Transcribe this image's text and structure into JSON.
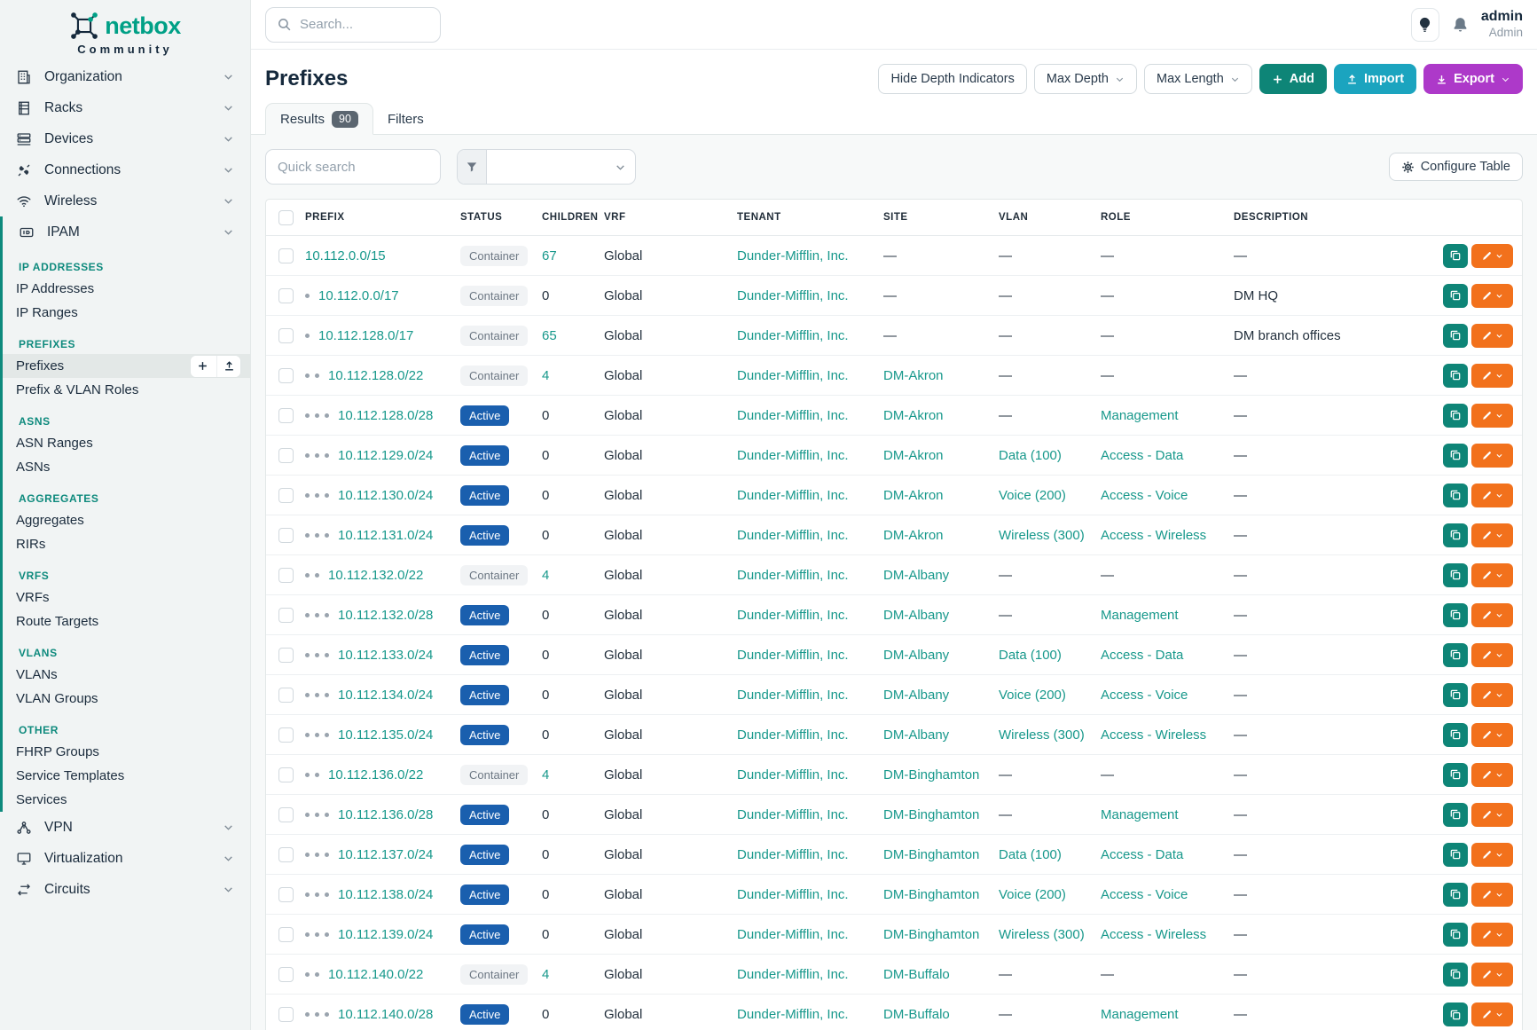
{
  "brand": {
    "name": "netbox",
    "subtitle": "Community"
  },
  "topbar": {
    "search_placeholder": "Search...",
    "user": {
      "name": "admin",
      "role": "Admin"
    }
  },
  "sidebar": {
    "top_items": [
      {
        "label": "Organization",
        "icon": "building"
      },
      {
        "label": "Racks",
        "icon": "rack"
      },
      {
        "label": "Devices",
        "icon": "devices"
      },
      {
        "label": "Connections",
        "icon": "plug"
      },
      {
        "label": "Wireless",
        "icon": "wifi"
      },
      {
        "label": "IPAM",
        "icon": "ipam"
      }
    ],
    "ipam_sections": [
      {
        "header": "IP ADDRESSES",
        "items": [
          {
            "label": "IP Addresses"
          },
          {
            "label": "IP Ranges"
          }
        ]
      },
      {
        "header": "PREFIXES",
        "items": [
          {
            "label": "Prefixes",
            "active": true
          },
          {
            "label": "Prefix & VLAN Roles"
          }
        ]
      },
      {
        "header": "ASNS",
        "items": [
          {
            "label": "ASN Ranges"
          },
          {
            "label": "ASNs"
          }
        ]
      },
      {
        "header": "AGGREGATES",
        "items": [
          {
            "label": "Aggregates"
          },
          {
            "label": "RIRs"
          }
        ]
      },
      {
        "header": "VRFS",
        "items": [
          {
            "label": "VRFs"
          },
          {
            "label": "Route Targets"
          }
        ]
      },
      {
        "header": "VLANS",
        "items": [
          {
            "label": "VLANs"
          },
          {
            "label": "VLAN Groups"
          }
        ]
      },
      {
        "header": "OTHER",
        "items": [
          {
            "label": "FHRP Groups"
          },
          {
            "label": "Service Templates"
          },
          {
            "label": "Services"
          }
        ]
      }
    ],
    "bottom_items": [
      {
        "label": "VPN",
        "icon": "vpn"
      },
      {
        "label": "Virtualization",
        "icon": "monitor"
      },
      {
        "label": "Circuits",
        "icon": "circuit"
      }
    ]
  },
  "page": {
    "title": "Prefixes",
    "actions": {
      "hide_depth": "Hide Depth Indicators",
      "max_depth": "Max Depth",
      "max_length": "Max Length",
      "add": "Add",
      "import": "Import",
      "export": "Export"
    },
    "tabs": {
      "results": "Results",
      "results_count": "90",
      "filters": "Filters"
    },
    "toolbar": {
      "quick_search_placeholder": "Quick search",
      "configure_table": "Configure Table"
    }
  },
  "colors": {
    "accent_teal": "#17988b",
    "add_button": "#0e8577",
    "import_button": "#1ba4bf",
    "export_button": "#ad39c9",
    "active_badge": "#1a5fae",
    "container_badge_bg": "#f1f3f5",
    "edit_button": "#f2711c",
    "sidebar_section": "#0e8a7d"
  },
  "table": {
    "columns": [
      "PREFIX",
      "STATUS",
      "CHILDREN",
      "VRF",
      "TENANT",
      "SITE",
      "VLAN",
      "ROLE",
      "DESCRIPTION"
    ],
    "rows": [
      {
        "prefix": "10.112.0.0/15",
        "depth": 0,
        "status": "Container",
        "children": "67",
        "vrf": "Global",
        "tenant": "Dunder-Mifflin, Inc.",
        "site": "—",
        "vlan": "—",
        "role": "—",
        "description": "—"
      },
      {
        "prefix": "10.112.0.0/17",
        "depth": 1,
        "status": "Container",
        "children": "0",
        "vrf": "Global",
        "tenant": "Dunder-Mifflin, Inc.",
        "site": "—",
        "vlan": "—",
        "role": "—",
        "description": "DM HQ"
      },
      {
        "prefix": "10.112.128.0/17",
        "depth": 1,
        "status": "Container",
        "children": "65",
        "vrf": "Global",
        "tenant": "Dunder-Mifflin, Inc.",
        "site": "—",
        "vlan": "—",
        "role": "—",
        "description": "DM branch offices"
      },
      {
        "prefix": "10.112.128.0/22",
        "depth": 2,
        "status": "Container",
        "children": "4",
        "vrf": "Global",
        "tenant": "Dunder-Mifflin, Inc.",
        "site": "DM-Akron",
        "vlan": "—",
        "role": "—",
        "description": "—"
      },
      {
        "prefix": "10.112.128.0/28",
        "depth": 3,
        "status": "Active",
        "children": "0",
        "vrf": "Global",
        "tenant": "Dunder-Mifflin, Inc.",
        "site": "DM-Akron",
        "vlan": "—",
        "role": "Management",
        "description": "—"
      },
      {
        "prefix": "10.112.129.0/24",
        "depth": 3,
        "status": "Active",
        "children": "0",
        "vrf": "Global",
        "tenant": "Dunder-Mifflin, Inc.",
        "site": "DM-Akron",
        "vlan": "Data (100)",
        "role": "Access - Data",
        "description": "—"
      },
      {
        "prefix": "10.112.130.0/24",
        "depth": 3,
        "status": "Active",
        "children": "0",
        "vrf": "Global",
        "tenant": "Dunder-Mifflin, Inc.",
        "site": "DM-Akron",
        "vlan": "Voice (200)",
        "role": "Access - Voice",
        "description": "—"
      },
      {
        "prefix": "10.112.131.0/24",
        "depth": 3,
        "status": "Active",
        "children": "0",
        "vrf": "Global",
        "tenant": "Dunder-Mifflin, Inc.",
        "site": "DM-Akron",
        "vlan": "Wireless (300)",
        "role": "Access - Wireless",
        "description": "—"
      },
      {
        "prefix": "10.112.132.0/22",
        "depth": 2,
        "status": "Container",
        "children": "4",
        "vrf": "Global",
        "tenant": "Dunder-Mifflin, Inc.",
        "site": "DM-Albany",
        "vlan": "—",
        "role": "—",
        "description": "—"
      },
      {
        "prefix": "10.112.132.0/28",
        "depth": 3,
        "status": "Active",
        "children": "0",
        "vrf": "Global",
        "tenant": "Dunder-Mifflin, Inc.",
        "site": "DM-Albany",
        "vlan": "—",
        "role": "Management",
        "description": "—"
      },
      {
        "prefix": "10.112.133.0/24",
        "depth": 3,
        "status": "Active",
        "children": "0",
        "vrf": "Global",
        "tenant": "Dunder-Mifflin, Inc.",
        "site": "DM-Albany",
        "vlan": "Data (100)",
        "role": "Access - Data",
        "description": "—"
      },
      {
        "prefix": "10.112.134.0/24",
        "depth": 3,
        "status": "Active",
        "children": "0",
        "vrf": "Global",
        "tenant": "Dunder-Mifflin, Inc.",
        "site": "DM-Albany",
        "vlan": "Voice (200)",
        "role": "Access - Voice",
        "description": "—"
      },
      {
        "prefix": "10.112.135.0/24",
        "depth": 3,
        "status": "Active",
        "children": "0",
        "vrf": "Global",
        "tenant": "Dunder-Mifflin, Inc.",
        "site": "DM-Albany",
        "vlan": "Wireless (300)",
        "role": "Access - Wireless",
        "description": "—"
      },
      {
        "prefix": "10.112.136.0/22",
        "depth": 2,
        "status": "Container",
        "children": "4",
        "vrf": "Global",
        "tenant": "Dunder-Mifflin, Inc.",
        "site": "DM-Binghamton",
        "vlan": "—",
        "role": "—",
        "description": "—"
      },
      {
        "prefix": "10.112.136.0/28",
        "depth": 3,
        "status": "Active",
        "children": "0",
        "vrf": "Global",
        "tenant": "Dunder-Mifflin, Inc.",
        "site": "DM-Binghamton",
        "vlan": "—",
        "role": "Management",
        "description": "—"
      },
      {
        "prefix": "10.112.137.0/24",
        "depth": 3,
        "status": "Active",
        "children": "0",
        "vrf": "Global",
        "tenant": "Dunder-Mifflin, Inc.",
        "site": "DM-Binghamton",
        "vlan": "Data (100)",
        "role": "Access - Data",
        "description": "—"
      },
      {
        "prefix": "10.112.138.0/24",
        "depth": 3,
        "status": "Active",
        "children": "0",
        "vrf": "Global",
        "tenant": "Dunder-Mifflin, Inc.",
        "site": "DM-Binghamton",
        "vlan": "Voice (200)",
        "role": "Access - Voice",
        "description": "—"
      },
      {
        "prefix": "10.112.139.0/24",
        "depth": 3,
        "status": "Active",
        "children": "0",
        "vrf": "Global",
        "tenant": "Dunder-Mifflin, Inc.",
        "site": "DM-Binghamton",
        "vlan": "Wireless (300)",
        "role": "Access - Wireless",
        "description": "—"
      },
      {
        "prefix": "10.112.140.0/22",
        "depth": 2,
        "status": "Container",
        "children": "4",
        "vrf": "Global",
        "tenant": "Dunder-Mifflin, Inc.",
        "site": "DM-Buffalo",
        "vlan": "—",
        "role": "—",
        "description": "—"
      },
      {
        "prefix": "10.112.140.0/28",
        "depth": 3,
        "status": "Active",
        "children": "0",
        "vrf": "Global",
        "tenant": "Dunder-Mifflin, Inc.",
        "site": "DM-Buffalo",
        "vlan": "—",
        "role": "Management",
        "description": "—"
      }
    ]
  }
}
